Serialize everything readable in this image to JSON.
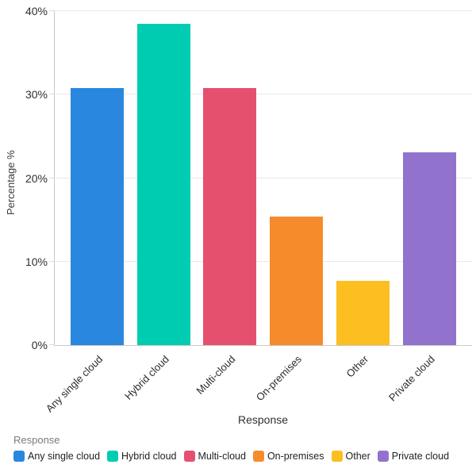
{
  "chart_data": {
    "type": "bar",
    "title": "",
    "xlabel": "Response",
    "ylabel": "Percentage %",
    "categories": [
      "Any single cloud",
      "Hybrid cloud",
      "Multi-cloud",
      "On-premises",
      "Other",
      "Private cloud"
    ],
    "values": [
      30.8,
      38.5,
      30.8,
      15.4,
      7.7,
      23.1
    ],
    "bar_colors": [
      "#2a87df",
      "#00ccb2",
      "#e6506f",
      "#f68b2b",
      "#fcbe20",
      "#9173ce"
    ],
    "ylim": [
      0,
      40
    ],
    "ytick_values": [
      0,
      10,
      20,
      30,
      40
    ],
    "ytick_labels": [
      "0%",
      "10%",
      "20%",
      "30%",
      "40%"
    ],
    "grid": "horizontal",
    "legend_position": "bottom"
  },
  "legend": {
    "title": "Response",
    "items": [
      {
        "label": "Any single cloud",
        "color": "#2a87df"
      },
      {
        "label": "Hybrid cloud",
        "color": "#00ccb2"
      },
      {
        "label": "Multi-cloud",
        "color": "#e6506f"
      },
      {
        "label": "On-premises",
        "color": "#f68b2b"
      },
      {
        "label": "Other",
        "color": "#fcbe20"
      },
      {
        "label": "Private cloud",
        "color": "#9173ce"
      }
    ]
  },
  "axes": {
    "x_title": "Response",
    "y_title": "Percentage %"
  },
  "colors": {
    "background": "#ffffff",
    "gridline": "#e8e8e8",
    "axis_line": "#c9c9c9",
    "tick_text": "#2f2f2f",
    "legend_title_text": "#7a7a7a"
  }
}
